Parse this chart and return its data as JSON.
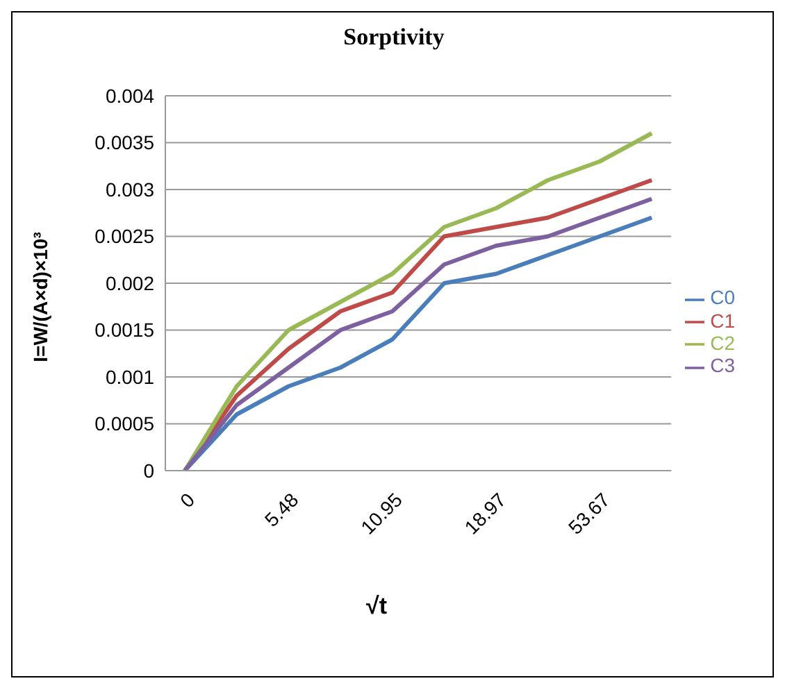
{
  "chart_data": {
    "type": "line",
    "title": "Sorptivity",
    "xlabel": "√t",
    "ylabel": "I=W/(A×d)×10³",
    "categories": [
      "0",
      null,
      "5.48",
      null,
      "10.95",
      null,
      "18.97",
      null,
      "53.67",
      null
    ],
    "series": [
      {
        "name": "C0",
        "color": "#4a7ebb",
        "values": [
          0,
          0.0006,
          0.0009,
          0.0011,
          0.0014,
          0.002,
          0.0021,
          0.0023,
          0.0025,
          0.0027
        ]
      },
      {
        "name": "C1",
        "color": "#be4b48",
        "values": [
          0,
          0.0008,
          0.0013,
          0.0017,
          0.0019,
          0.0025,
          0.0026,
          0.0027,
          0.0029,
          0.0031
        ]
      },
      {
        "name": "C2",
        "color": "#98b954",
        "values": [
          0,
          0.0009,
          0.0015,
          0.0018,
          0.0021,
          0.0026,
          0.0028,
          0.0031,
          0.0033,
          0.0036
        ]
      },
      {
        "name": "C3",
        "color": "#7d60a0",
        "values": [
          0,
          0.0007,
          0.0011,
          0.0015,
          0.0017,
          0.0022,
          0.0024,
          0.0025,
          0.0027,
          0.0029
        ]
      }
    ],
    "ylim": [
      0,
      0.004
    ],
    "yticks": [
      0,
      0.0005,
      0.001,
      0.0015,
      0.002,
      0.0025,
      0.003,
      0.0035,
      0.004
    ],
    "grid": "y",
    "legend": "right",
    "marker": "none",
    "line_style": "solid"
  }
}
